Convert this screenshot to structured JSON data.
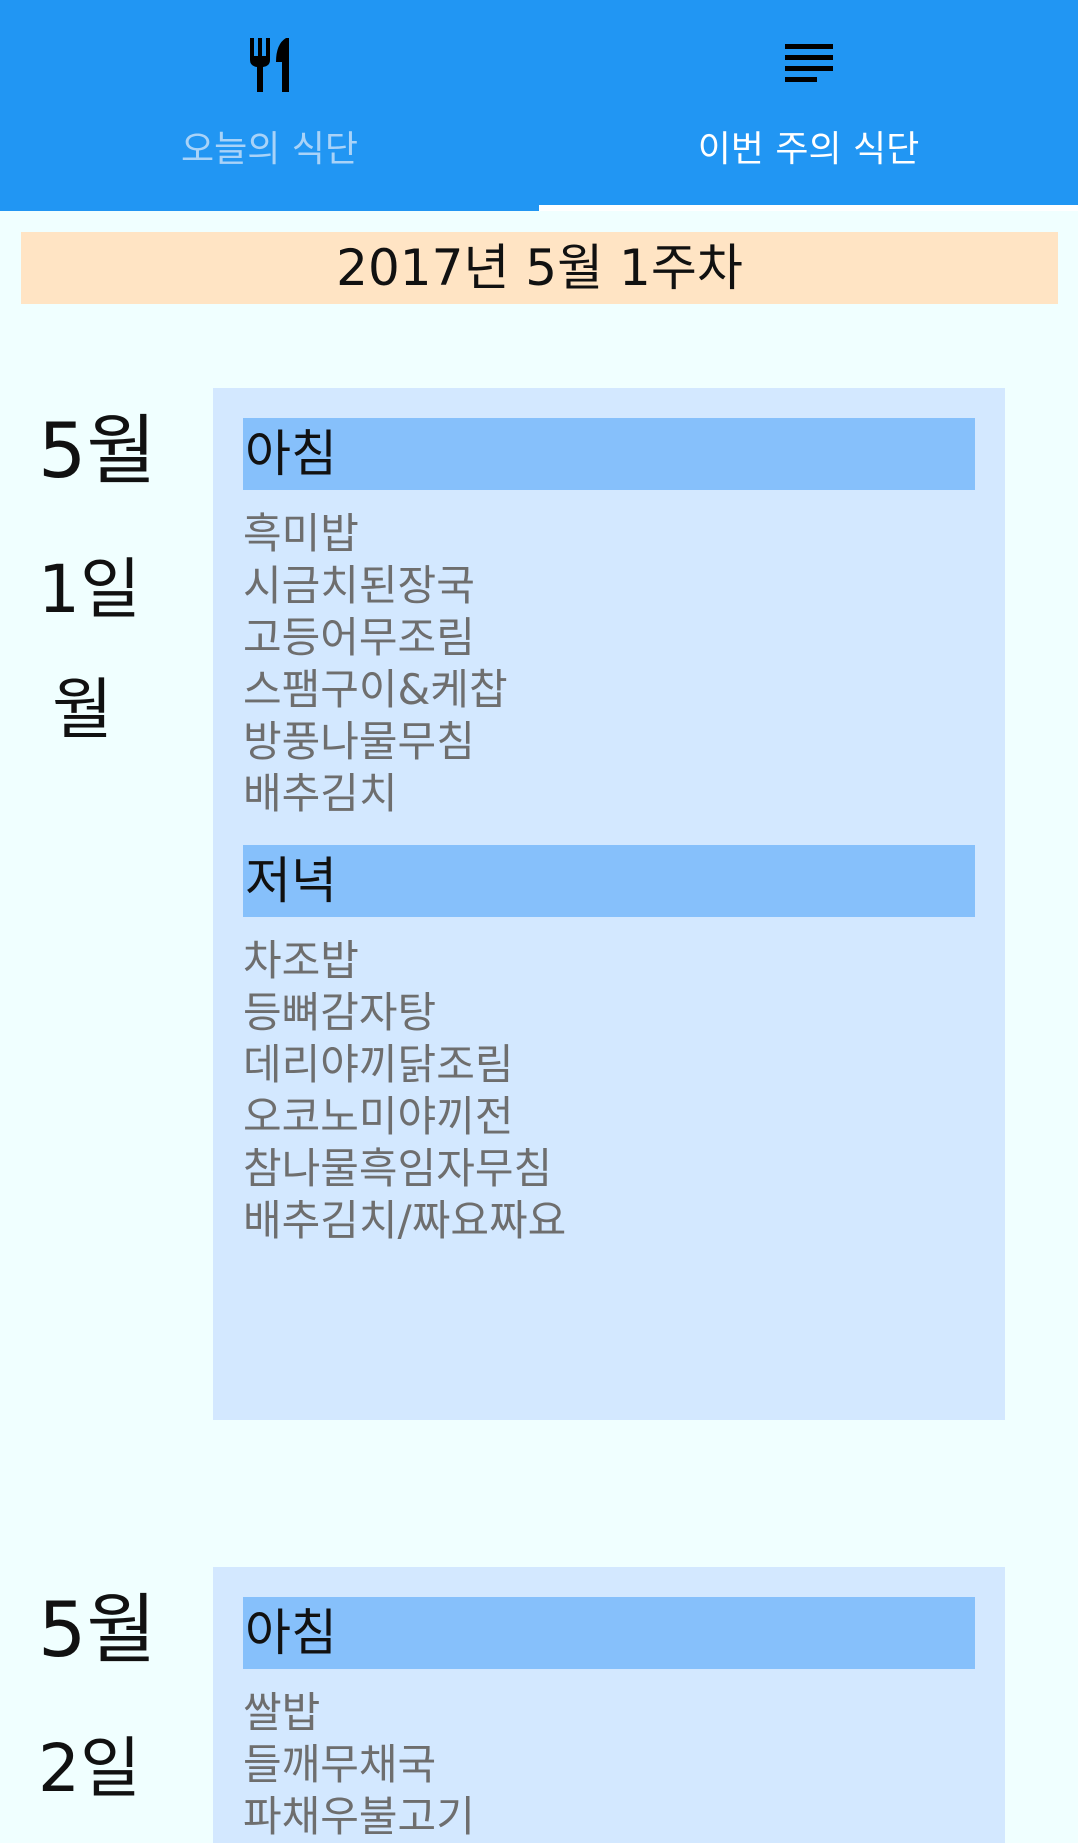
{
  "tabs": [
    {
      "label": "오늘의 식단",
      "icon": "fork-knife-icon",
      "selected": false
    },
    {
      "label": "이번 주의 식단",
      "icon": "list-lines-icon",
      "selected": true
    }
  ],
  "colors": {
    "app_bar": "#2196F3",
    "background": "#F0FFFF",
    "week_banner": "#FFE4C4",
    "menu_card": "#D3E8FF",
    "meal_header": "#86C0FB",
    "item_text": "#6E6E6E"
  },
  "week_title": "2017년 5월 1주차",
  "days": [
    {
      "month": "5월",
      "day": "1일",
      "weekday": "월",
      "meals": [
        {
          "name": "아침",
          "items": [
            "흑미밥",
            "시금치된장국",
            "고등어무조림",
            "스팸구이&케찹",
            "방풍나물무침",
            "배추김치"
          ]
        },
        {
          "name": "저녁",
          "items": [
            "차조밥",
            "등뼈감자탕",
            "데리야끼닭조림",
            "오코노미야끼전",
            "참나물흑임자무침",
            "배추김치/짜요짜요"
          ]
        }
      ]
    },
    {
      "month": "5월",
      "day": "2일",
      "meals": [
        {
          "name": "아침",
          "items": [
            "쌀밥",
            "들깨무채국",
            "파채우불고기"
          ]
        }
      ]
    }
  ]
}
